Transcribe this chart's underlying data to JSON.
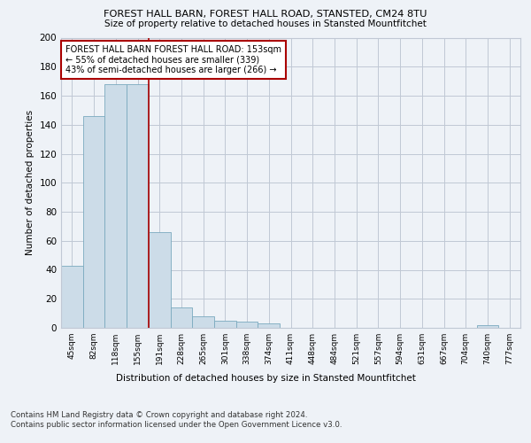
{
  "title1": "FOREST HALL BARN, FOREST HALL ROAD, STANSTED, CM24 8TU",
  "title2": "Size of property relative to detached houses in Stansted Mountfitchet",
  "xlabel": "Distribution of detached houses by size in Stansted Mountfitchet",
  "ylabel": "Number of detached properties",
  "bin_labels": [
    "45sqm",
    "82sqm",
    "118sqm",
    "155sqm",
    "191sqm",
    "228sqm",
    "265sqm",
    "301sqm",
    "338sqm",
    "374sqm",
    "411sqm",
    "448sqm",
    "484sqm",
    "521sqm",
    "557sqm",
    "594sqm",
    "631sqm",
    "667sqm",
    "704sqm",
    "740sqm",
    "777sqm"
  ],
  "bar_values": [
    43,
    146,
    168,
    168,
    66,
    14,
    8,
    5,
    4,
    3,
    0,
    0,
    0,
    0,
    0,
    0,
    0,
    0,
    0,
    2,
    0
  ],
  "bar_color": "#ccdce8",
  "bar_edge_color": "#7aaabf",
  "vline_x_idx": 3.5,
  "vline_color": "#aa0000",
  "annotation_text": "FOREST HALL BARN FOREST HALL ROAD: 153sqm\n← 55% of detached houses are smaller (339)\n43% of semi-detached houses are larger (266) →",
  "annotation_box_color": "white",
  "annotation_box_edge": "#aa0000",
  "ylim": [
    0,
    200
  ],
  "yticks": [
    0,
    20,
    40,
    60,
    80,
    100,
    120,
    140,
    160,
    180,
    200
  ],
  "footer1": "Contains HM Land Registry data © Crown copyright and database right 2024.",
  "footer2": "Contains public sector information licensed under the Open Government Licence v3.0.",
  "bg_color": "#eef2f7"
}
